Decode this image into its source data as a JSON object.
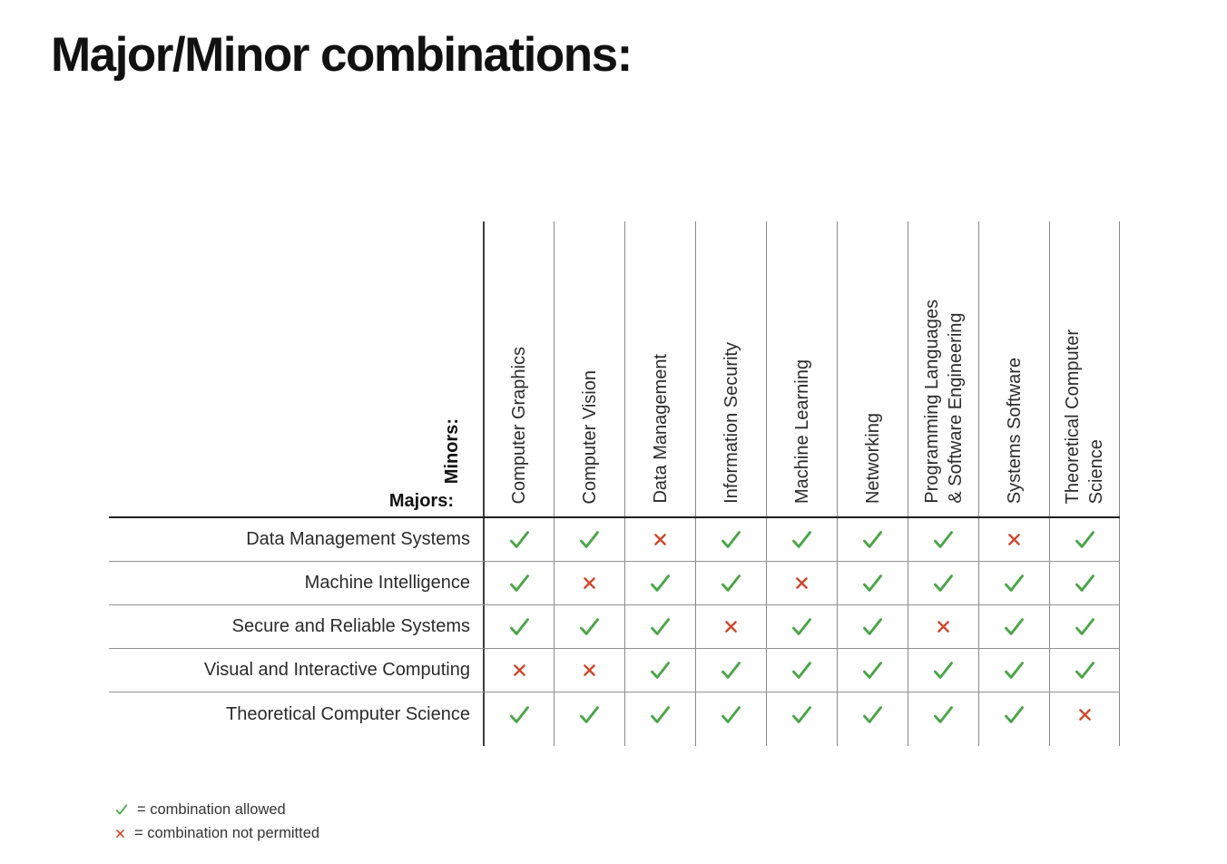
{
  "page": {
    "title": "Major/Minor combinations:"
  },
  "matrix": {
    "minors_label": "Minors:",
    "majors_label": "Majors:",
    "minors": [
      "Computer Graphics",
      "Computer Vision",
      "Data Management",
      "Information Security",
      "Machine Learning",
      "Networking",
      "Programming Languages\n& Software Engineering",
      "Systems Software",
      "Theoretical Computer\nScience"
    ],
    "majors": [
      "Data Management Systems",
      "Machine Intelligence",
      "Secure and Reliable Systems",
      "Visual and Interactive Computing",
      "Theoretical Computer Science"
    ],
    "allowed": [
      [
        true,
        true,
        false,
        true,
        true,
        true,
        true,
        false,
        true
      ],
      [
        true,
        false,
        true,
        true,
        false,
        true,
        true,
        true,
        true
      ],
      [
        true,
        true,
        true,
        false,
        true,
        true,
        false,
        true,
        true
      ],
      [
        false,
        false,
        true,
        true,
        true,
        true,
        true,
        true,
        true
      ],
      [
        true,
        true,
        true,
        true,
        true,
        true,
        true,
        true,
        false
      ]
    ],
    "colors": {
      "check": "#4BA548",
      "cross": "#CE482C"
    }
  },
  "legend": {
    "items": [
      {
        "mark": "check",
        "text": "= combination allowed"
      },
      {
        "mark": "cross",
        "text": "= combination not permitted"
      }
    ]
  }
}
